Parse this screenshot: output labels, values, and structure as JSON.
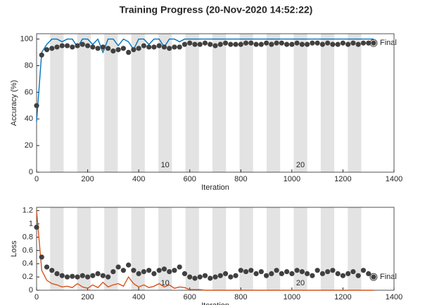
{
  "chart_data": [
    {
      "type": "line",
      "title": "Training Progress (20-Nov-2020 14:52:22)",
      "ylabel": "Accuracy (%)",
      "xlabel": "Iteration",
      "xlim": [
        0,
        1400
      ],
      "xticks": [
        0,
        200,
        400,
        600,
        800,
        1000,
        1200,
        1400
      ],
      "ylim": [
        0,
        104
      ],
      "yticks": [
        0,
        20,
        40,
        60,
        80,
        100
      ],
      "epoch_bands": [
        [
          53,
          106
        ],
        [
          159,
          212
        ],
        [
          265,
          318
        ],
        [
          371,
          424
        ],
        [
          477,
          530
        ],
        [
          583,
          636
        ],
        [
          689,
          742
        ],
        [
          795,
          848
        ],
        [
          901,
          954
        ],
        [
          1007,
          1060
        ],
        [
          1113,
          1166
        ],
        [
          1219,
          1272
        ]
      ],
      "epoch_labels": [
        10,
        20
      ],
      "final_label": "Final",
      "x": [
        0,
        20,
        40,
        60,
        80,
        100,
        120,
        140,
        160,
        180,
        200,
        220,
        240,
        260,
        280,
        300,
        320,
        340,
        360,
        380,
        400,
        420,
        440,
        460,
        480,
        500,
        520,
        540,
        560,
        580,
        600,
        620,
        640,
        660,
        680,
        700,
        720,
        740,
        760,
        780,
        800,
        820,
        840,
        860,
        880,
        900,
        920,
        940,
        960,
        980,
        1000,
        1020,
        1040,
        1060,
        1080,
        1100,
        1120,
        1140,
        1160,
        1180,
        1200,
        1220,
        1240,
        1260,
        1280,
        1300,
        1320
      ],
      "series": [
        {
          "color": "#0072bd",
          "style": "line",
          "values": [
            38,
            90,
            96,
            100,
            100,
            98,
            100,
            100,
            94,
            100,
            100,
            96,
            100,
            90,
            100,
            100,
            95,
            100,
            98,
            92,
            100,
            100,
            96,
            100,
            100,
            94,
            100,
            100,
            98,
            100,
            100,
            100,
            100,
            100,
            100,
            100,
            100,
            100,
            100,
            100,
            100,
            100,
            100,
            100,
            100,
            100,
            100,
            100,
            100,
            100,
            100,
            100,
            100,
            100,
            100,
            100,
            100,
            100,
            100,
            100,
            100,
            100,
            100,
            100,
            100,
            100,
            100
          ]
        },
        {
          "color": "#404040",
          "style": "dots",
          "values": [
            50,
            88,
            92,
            93,
            94,
            95,
            95,
            94,
            95,
            96,
            95,
            94,
            93,
            94,
            93,
            91,
            92,
            93,
            90,
            92,
            93,
            95,
            94,
            94,
            95,
            94,
            93,
            94,
            94,
            96,
            97,
            96,
            96,
            97,
            96,
            95,
            96,
            97,
            96,
            96,
            96,
            97,
            97,
            96,
            96,
            97,
            96,
            97,
            97,
            96,
            96,
            97,
            96,
            96,
            97,
            97,
            96,
            97,
            96,
            96,
            97,
            96,
            97,
            96,
            97,
            97,
            97
          ]
        }
      ]
    },
    {
      "type": "line",
      "ylabel": "Loss",
      "xlabel": "Iteration",
      "xlim": [
        0,
        1400
      ],
      "xticks": [
        0,
        200,
        400,
        600,
        800,
        1000,
        1200,
        1400
      ],
      "ylim": [
        0,
        1.25
      ],
      "yticks": [
        0,
        0.2,
        0.4,
        0.6,
        0.8,
        1,
        1.2
      ],
      "epoch_bands": [
        [
          53,
          106
        ],
        [
          159,
          212
        ],
        [
          265,
          318
        ],
        [
          371,
          424
        ],
        [
          477,
          530
        ],
        [
          583,
          636
        ],
        [
          689,
          742
        ],
        [
          795,
          848
        ],
        [
          901,
          954
        ],
        [
          1007,
          1060
        ],
        [
          1113,
          1166
        ],
        [
          1219,
          1272
        ]
      ],
      "epoch_labels": [
        10,
        20
      ],
      "final_label": "Final",
      "x": [
        0,
        20,
        40,
        60,
        80,
        100,
        120,
        140,
        160,
        180,
        200,
        220,
        240,
        260,
        280,
        300,
        320,
        340,
        360,
        380,
        400,
        420,
        440,
        460,
        480,
        500,
        520,
        540,
        560,
        580,
        600,
        620,
        640,
        660,
        680,
        700,
        720,
        740,
        760,
        780,
        800,
        820,
        840,
        860,
        880,
        900,
        920,
        940,
        960,
        980,
        1000,
        1020,
        1040,
        1060,
        1080,
        1100,
        1120,
        1140,
        1160,
        1180,
        1200,
        1220,
        1240,
        1260,
        1280,
        1300,
        1320
      ],
      "series": [
        {
          "color": "#d95319",
          "style": "line",
          "values": [
            1.2,
            0.3,
            0.15,
            0.1,
            0.08,
            0.05,
            0.06,
            0.04,
            0.1,
            0.05,
            0.03,
            0.08,
            0.04,
            0.12,
            0.05,
            0.08,
            0.1,
            0.06,
            0.2,
            0.1,
            0.05,
            0.08,
            0.04,
            0.06,
            0.1,
            0.05,
            0.08,
            0.03,
            0.05,
            0.04,
            0.01,
            0.01,
            0.01,
            0,
            0,
            0,
            0,
            0,
            0,
            0,
            0,
            0,
            0,
            0,
            0,
            0,
            0,
            0,
            0,
            0,
            0,
            0,
            0,
            0,
            0,
            0,
            0,
            0,
            0,
            0,
            0,
            0,
            0,
            0,
            0,
            0,
            0
          ]
        },
        {
          "color": "#404040",
          "style": "dots",
          "values": [
            0.95,
            0.5,
            0.35,
            0.3,
            0.25,
            0.22,
            0.2,
            0.21,
            0.2,
            0.22,
            0.2,
            0.22,
            0.25,
            0.22,
            0.2,
            0.28,
            0.35,
            0.3,
            0.38,
            0.3,
            0.25,
            0.28,
            0.3,
            0.25,
            0.3,
            0.32,
            0.28,
            0.3,
            0.35,
            0.25,
            0.2,
            0.18,
            0.2,
            0.22,
            0.18,
            0.2,
            0.22,
            0.25,
            0.2,
            0.22,
            0.3,
            0.28,
            0.3,
            0.25,
            0.28,
            0.22,
            0.25,
            0.3,
            0.25,
            0.28,
            0.25,
            0.3,
            0.28,
            0.25,
            0.22,
            0.3,
            0.25,
            0.28,
            0.3,
            0.25,
            0.22,
            0.25,
            0.28,
            0.22,
            0.3,
            0.25,
            0.2
          ]
        }
      ]
    }
  ]
}
